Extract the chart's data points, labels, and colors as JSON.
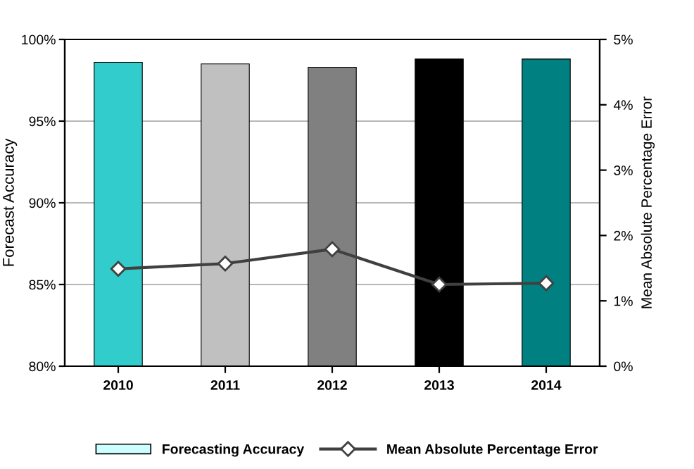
{
  "chart_data": {
    "type": "bar",
    "xlabel": null,
    "ylabel": "Forecast Accuracy",
    "y2label": "Mean Absolute Percentage Error",
    "categories": [
      "2010",
      "2011",
      "2012",
      "2013",
      "2014"
    ],
    "series": [
      {
        "name": "Forecasting Accuracy",
        "color": "#ccffff",
        "colors": [
          "#33cccc",
          "#c0c0c0",
          "#808080",
          "#000000",
          "#008080"
        ],
        "values": [
          98.6,
          98.5,
          98.3,
          98.8,
          98.8
        ]
      },
      {
        "name": "Mean Absolute Percentage Error",
        "type": "line",
        "axis": "y2",
        "color": "#404040",
        "marker": "diamond",
        "line_style": "solid",
        "values": [
          1.49,
          1.57,
          1.79,
          1.25,
          1.27
        ]
      }
    ],
    "ylim": [
      80,
      100
    ],
    "yticks": [
      {
        "value": 80,
        "label": "80%"
      },
      {
        "value": 85,
        "label": "85%"
      },
      {
        "value": 90,
        "label": "90%"
      },
      {
        "value": 95,
        "label": "95%"
      },
      {
        "value": 100,
        "label": "100%"
      }
    ],
    "y2lim": [
      0,
      5
    ],
    "y2ticks": [
      {
        "value": 0,
        "label": "0%"
      },
      {
        "value": 1,
        "label": "1%"
      },
      {
        "value": 2,
        "label": "2%"
      },
      {
        "value": 3,
        "label": "3%"
      },
      {
        "value": 4,
        "label": "4%"
      },
      {
        "value": 5,
        "label": "5%"
      }
    ],
    "grid": "y",
    "legend": "bottom"
  }
}
